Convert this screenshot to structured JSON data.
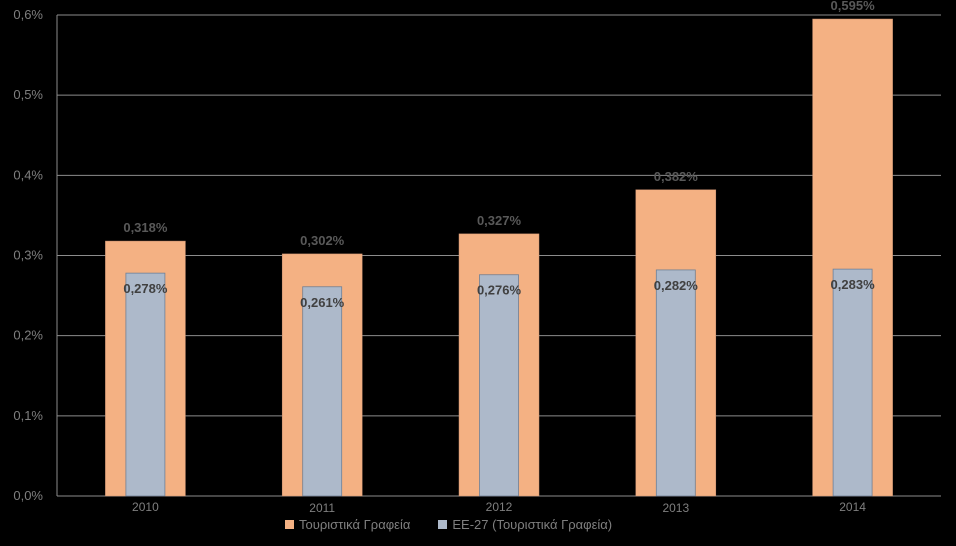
{
  "chart_data": {
    "type": "bar",
    "categories": [
      "2010",
      "2011",
      "2012",
      "2013",
      "2014"
    ],
    "series": [
      {
        "name": "Τουριστικά Γραφεία",
        "values": [
          0.318,
          0.302,
          0.327,
          0.382,
          0.595
        ],
        "labels": [
          "0,318%",
          "0,302%",
          "0,327%",
          "0,382%",
          "0,595%"
        ],
        "color": "#F4B183"
      },
      {
        "name": "ΕΕ-27 (Τουριστικά Γραφεία)",
        "values": [
          0.278,
          0.261,
          0.276,
          0.282,
          0.283
        ],
        "labels": [
          "0,278%",
          "0,261%",
          "0,276%",
          "0,282%",
          "0,283%"
        ],
        "color": "#ADB9CA"
      }
    ],
    "y_ticks": [
      0,
      0.1,
      0.2,
      0.3,
      0.4,
      0.5,
      0.6
    ],
    "y_tick_labels": [
      "0,0%",
      "0,1%",
      "0,2%",
      "0,3%",
      "0,4%",
      "0,5%",
      "0,6%"
    ],
    "ylim": [
      0,
      0.6
    ],
    "grid": true,
    "legend_position": "bottom",
    "background": "#000000"
  }
}
